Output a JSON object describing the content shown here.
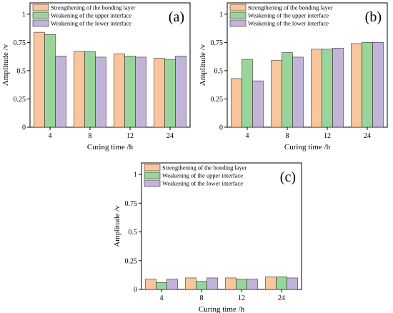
{
  "colors": {
    "strengthening": "#F9C59C",
    "upper": "#99D59A",
    "lower": "#C2B4D8",
    "edge": "#333333"
  },
  "chart_data": [
    {
      "type": "bar",
      "panel_label": "(a)",
      "categories": [
        "4",
        "8",
        "12",
        "24"
      ],
      "series": [
        {
          "name": "Strengthening of the bonding layer",
          "values": [
            0.84,
            0.67,
            0.65,
            0.61
          ]
        },
        {
          "name": "Weakening of the upper interface",
          "values": [
            0.82,
            0.67,
            0.63,
            0.6
          ]
        },
        {
          "name": "Weakening of the lower interface",
          "values": [
            0.63,
            0.62,
            0.62,
            0.63
          ]
        }
      ],
      "xlabel": "Curing time /h",
      "ylabel": "Amplitude /v",
      "ylim": [
        0,
        1.1
      ],
      "yticks": [
        "0",
        "0.25",
        "0.5",
        "0.75",
        "1"
      ],
      "legend": "top-left",
      "grid": false
    },
    {
      "type": "bar",
      "panel_label": "(b)",
      "categories": [
        "4",
        "8",
        "12",
        "24"
      ],
      "series": [
        {
          "name": "Strengthening of the bonding layer",
          "values": [
            0.43,
            0.59,
            0.69,
            0.74
          ]
        },
        {
          "name": "Weakening of the upper interface",
          "values": [
            0.6,
            0.66,
            0.69,
            0.75
          ]
        },
        {
          "name": "Weakening of the lower interface",
          "values": [
            0.41,
            0.62,
            0.7,
            0.75
          ]
        }
      ],
      "xlabel": "Curing time /h",
      "ylabel": "Amplitude /v",
      "ylim": [
        0,
        1.1
      ],
      "yticks": [
        "0",
        "0.25",
        "0.5",
        "0.75",
        "1"
      ],
      "legend": "top-left",
      "grid": false
    },
    {
      "type": "bar",
      "panel_label": "(c)",
      "categories": [
        "4",
        "8",
        "12",
        "24"
      ],
      "series": [
        {
          "name": "Strengthening of the bonding layer",
          "values": [
            0.09,
            0.1,
            0.1,
            0.11
          ]
        },
        {
          "name": "Weakening of the upper interface",
          "values": [
            0.06,
            0.07,
            0.09,
            0.11
          ]
        },
        {
          "name": "Weakening of the lower interface",
          "values": [
            0.09,
            0.1,
            0.09,
            0.1
          ]
        }
      ],
      "xlabel": "Curing time /h",
      "ylabel": "Amplitude /v",
      "ylim": [
        0,
        1.1
      ],
      "yticks": [
        "0",
        "0.25",
        "0.5",
        "0.75",
        "1"
      ],
      "legend": "top-left",
      "grid": false
    }
  ]
}
